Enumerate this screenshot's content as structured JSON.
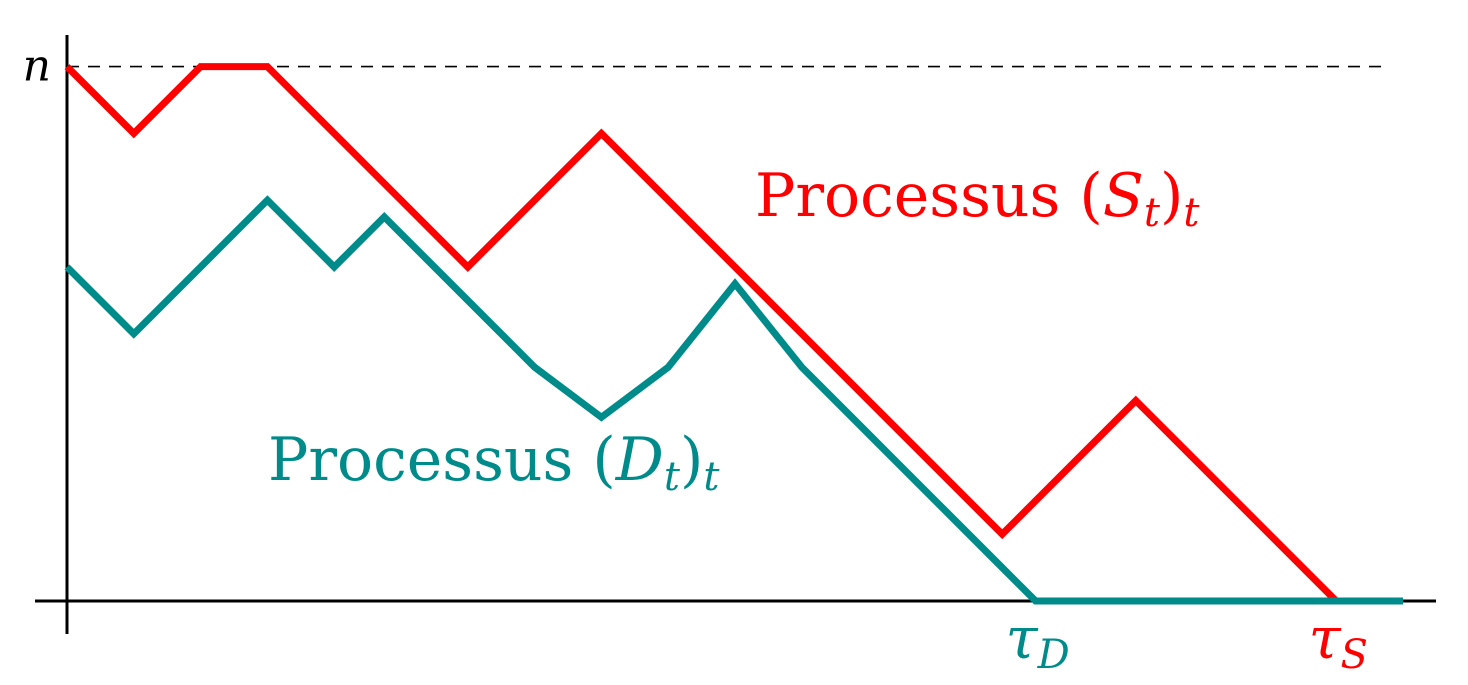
{
  "chart_data": {
    "type": "line",
    "xlim": [
      0,
      20
    ],
    "ylim": [
      0,
      8
    ],
    "grid": false,
    "reference_line": {
      "y": 8,
      "label": "n",
      "style": "dashed"
    },
    "series": [
      {
        "name": "Processus (S_t)_t",
        "label_main": "Processus ",
        "label_var": "S",
        "label_sub": "t",
        "label_outer_sub": "t",
        "color": "#ff0000",
        "x": [
          0,
          1,
          2,
          3,
          4,
          5,
          6,
          7,
          8,
          9,
          10,
          11,
          12,
          13,
          14,
          15,
          16,
          17,
          18,
          19
        ],
        "y": [
          8,
          7,
          8,
          8,
          7,
          6,
          5,
          6,
          7,
          6,
          5,
          4,
          3,
          2,
          1,
          2,
          3,
          2,
          1,
          0
        ]
      },
      {
        "name": "Processus (D_t)_t",
        "label_main": "Processus ",
        "label_var": "D",
        "label_sub": "t",
        "label_outer_sub": "t",
        "color": "#008b8b",
        "x": [
          0,
          1,
          2,
          3,
          4,
          4.75,
          5.5,
          6,
          7,
          8,
          9,
          10,
          11,
          12,
          13,
          14,
          14.5,
          20
        ],
        "y": [
          5,
          4,
          5,
          6,
          5,
          5.75,
          5,
          4.5,
          3.5,
          2.75,
          3.5,
          4.75,
          3.5,
          2.5,
          1.5,
          0.5,
          0,
          0
        ]
      }
    ],
    "annotations": [
      {
        "x": 14.5,
        "var": "τ",
        "sub": "D",
        "color": "#008b8b"
      },
      {
        "x": 19,
        "var": "τ",
        "sub": "S",
        "color": "#ff0000"
      }
    ]
  }
}
